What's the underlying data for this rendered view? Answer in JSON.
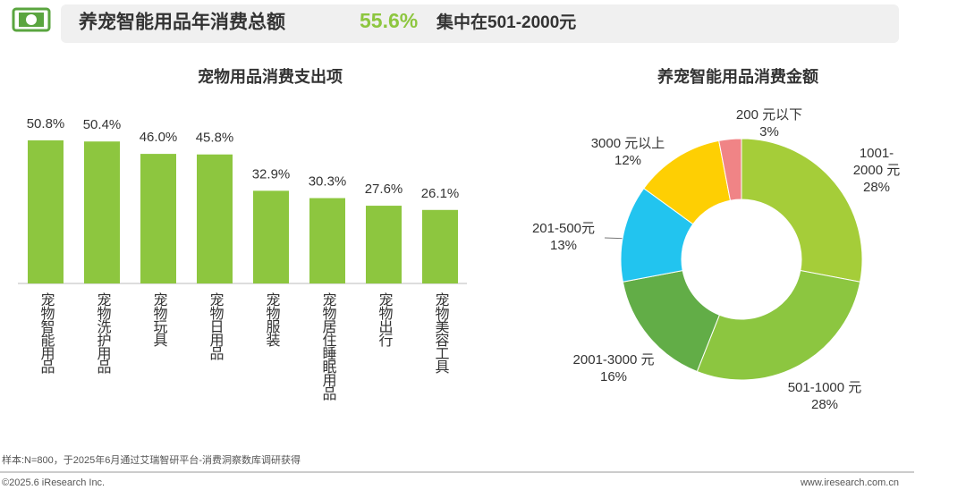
{
  "header": {
    "title": "养宠智能用品年消费总额",
    "highlight": "55.6%",
    "subtitle": "集中在501-2000元"
  },
  "chart_data": [
    {
      "type": "bar",
      "title": "宠物用品消费支出项",
      "categories": [
        "宠物智能用品",
        "宠物洗护用品",
        "宠物玩具",
        "宠物日用品",
        "宠物服装",
        "宠物居住睡眠用品",
        "宠物出行",
        "宠物美容工具"
      ],
      "values": [
        50.8,
        50.4,
        46.0,
        45.8,
        32.9,
        30.3,
        27.6,
        26.1
      ],
      "value_labels": [
        "50.8%",
        "50.4%",
        "46.0%",
        "45.8%",
        "32.9%",
        "30.3%",
        "27.6%",
        "26.1%"
      ],
      "color": "#8dc63f"
    },
    {
      "type": "pie",
      "title": "养宠智能用品消费金额",
      "categories": [
        "1001-2000 元",
        "501-1000 元",
        "2001-3000 元",
        "201-500元",
        "3000 元以上",
        "200 元以下"
      ],
      "values": [
        28,
        28,
        16,
        13,
        12,
        3
      ],
      "value_labels": [
        "28%",
        "28%",
        "16%",
        "13%",
        "12%",
        "3%"
      ],
      "colors": [
        "#a5cd39",
        "#8cc640",
        "#62ad47",
        "#22c4ef",
        "#fecf03",
        "#f08486"
      ]
    }
  ],
  "footer": {
    "note": "样本:N=800，于2025年6月通过艾瑞智研平台-消费洞察数库调研获得",
    "copyright": "©2025.6 iResearch Inc.",
    "website": "www.iresearch.com.cn"
  }
}
